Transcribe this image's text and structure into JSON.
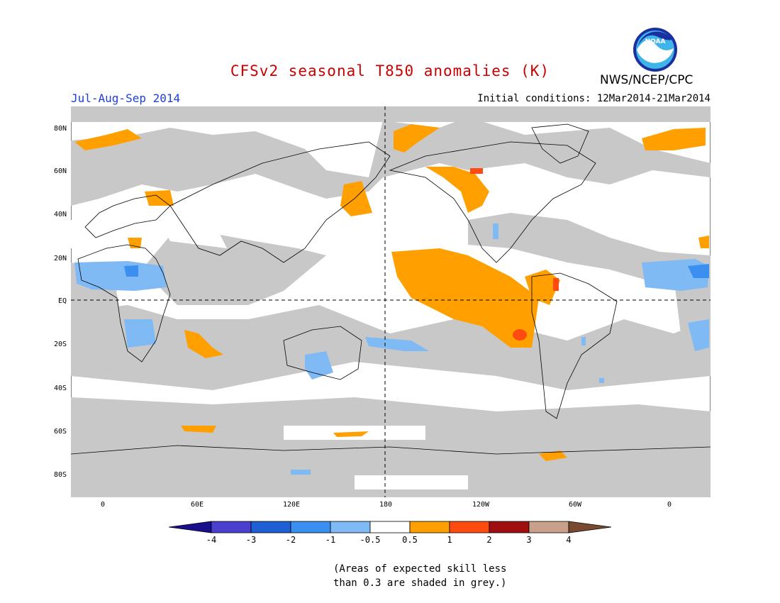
{
  "header": {
    "title": "CFSv2 seasonal T850 anomalies (K)",
    "season": "Jul-Aug-Sep 2014",
    "initial_conditions": "Initial conditions: 12Mar2014-21Mar2014",
    "agency": "NWS/NCEP/CPC",
    "logo_text": "NOAA"
  },
  "map": {
    "lat_labels": [
      "80N",
      "60N",
      "40N",
      "20N",
      "EQ",
      "20S",
      "40S",
      "60S",
      "80S"
    ],
    "lon_labels": [
      "0",
      "60E",
      "120E",
      "180",
      "120W",
      "60W",
      "0"
    ]
  },
  "colorbar": {
    "labels": [
      "-4",
      "-3",
      "-2",
      "-1",
      "-0.5",
      "0.5",
      "1",
      "2",
      "3",
      "4"
    ],
    "colors": [
      "#1a0f8c",
      "#4b3fd0",
      "#1f5fd6",
      "#3b8ff0",
      "#7fbaf5",
      "#ffffff",
      "#ffa000",
      "#ff4a10",
      "#a00f0f",
      "#c8a08c",
      "#7a4a30"
    ]
  },
  "note": {
    "line1": "(Areas of expected skill less",
    "line2": "than 0.3 are shaded in grey.)"
  },
  "colors": {
    "title": "#cc0000",
    "season": "#1f3fd6",
    "grey": "#c8c8c8"
  }
}
